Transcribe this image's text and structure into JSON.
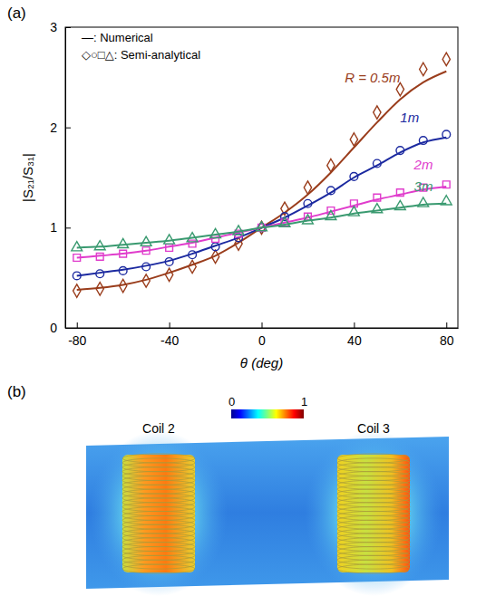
{
  "chart_data": [
    {
      "type": "line",
      "panel": "(a)",
      "x_label": "θ (deg)",
      "y_label": "|S₂₁/S₃₁|",
      "legend": "upper left",
      "legend_labels": [
        "—: Numerical",
        "◇○□△: Semi-analytical"
      ],
      "x": [
        -80,
        -70,
        -60,
        -50,
        -40,
        -30,
        -20,
        -10,
        0,
        10,
        20,
        30,
        40,
        50,
        60,
        70,
        80
      ],
      "xlim": [
        -85,
        85
      ],
      "xticks": [
        -80,
        -40,
        0,
        40,
        80
      ],
      "ylim": [
        0,
        3
      ],
      "yticks": [
        0,
        1,
        2,
        3
      ],
      "series": [
        {
          "name": "R = 0.5m",
          "color": "#9a3d1c",
          "marker": "diamond",
          "line_style": "solid",
          "values": [
            0.38,
            0.4,
            0.43,
            0.48,
            0.55,
            0.63,
            0.72,
            0.85,
            1.0,
            1.15,
            1.33,
            1.55,
            1.8,
            2.05,
            2.28,
            2.45,
            2.56
          ],
          "semi_analytical": [
            0.37,
            0.39,
            0.42,
            0.47,
            0.53,
            0.61,
            0.71,
            0.84,
            1.0,
            1.19,
            1.4,
            1.62,
            1.88,
            2.15,
            2.38,
            2.58,
            2.68
          ],
          "label_x": 36,
          "label_y": 2.45
        },
        {
          "name": "1m",
          "color": "#1c2aa0",
          "marker": "circle",
          "line_style": "solid",
          "values": [
            0.52,
            0.55,
            0.58,
            0.62,
            0.67,
            0.74,
            0.82,
            0.9,
            1.0,
            1.1,
            1.22,
            1.35,
            1.5,
            1.62,
            1.75,
            1.85,
            1.9
          ],
          "semi_analytical": [
            0.52,
            0.54,
            0.57,
            0.61,
            0.66,
            0.73,
            0.81,
            0.9,
            1.0,
            1.11,
            1.24,
            1.37,
            1.51,
            1.64,
            1.77,
            1.87,
            1.93
          ],
          "label_x": 60,
          "label_y": 2.05
        },
        {
          "name": "2m",
          "color": "#e03ccc",
          "marker": "square",
          "line_style": "solid",
          "values": [
            0.7,
            0.72,
            0.74,
            0.77,
            0.81,
            0.85,
            0.9,
            0.95,
            1.0,
            1.05,
            1.1,
            1.16,
            1.22,
            1.28,
            1.33,
            1.38,
            1.41
          ],
          "semi_analytical": [
            0.7,
            0.71,
            0.74,
            0.77,
            0.8,
            0.84,
            0.89,
            0.94,
            1.0,
            1.05,
            1.11,
            1.17,
            1.24,
            1.3,
            1.35,
            1.4,
            1.43
          ],
          "label_x": 66,
          "label_y": 1.58
        },
        {
          "name": "3m",
          "color": "#3a9a70",
          "marker": "triangle",
          "line_style": "solid",
          "values": [
            0.8,
            0.81,
            0.83,
            0.85,
            0.87,
            0.9,
            0.93,
            0.96,
            1.0,
            1.03,
            1.07,
            1.1,
            1.14,
            1.17,
            1.2,
            1.23,
            1.24
          ],
          "semi_analytical": [
            0.8,
            0.81,
            0.83,
            0.85,
            0.87,
            0.89,
            0.93,
            0.96,
            1.0,
            1.04,
            1.07,
            1.11,
            1.15,
            1.18,
            1.21,
            1.24,
            1.26
          ],
          "label_x": 66,
          "label_y": 1.36
        }
      ]
    },
    {
      "type": "field_map",
      "panel": "(b)",
      "labels": [
        "Coil 2",
        "Coil 3"
      ],
      "colorbar_range": [
        0,
        1
      ],
      "colorbar_ticks": [
        0,
        1
      ]
    }
  ]
}
